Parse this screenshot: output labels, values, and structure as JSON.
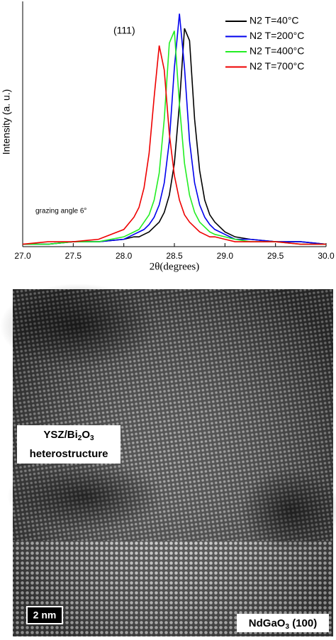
{
  "chart_data": {
    "type": "line",
    "ylabel": "Intensity (a. u.)",
    "xlabel": "2θ(degrees)",
    "annotations": [
      "(111)",
      "grazing angle 6°"
    ],
    "legend": "upper right",
    "xlim": [
      27,
      30
    ],
    "xticks": [
      {
        "value": 27,
        "label": "27.0"
      },
      {
        "value": 27.5,
        "label": "27.5"
      },
      {
        "value": 28,
        "label": "28.0"
      },
      {
        "value": 28.5,
        "label": "28.5"
      },
      {
        "value": 29,
        "label": "29.0"
      },
      {
        "value": 29.5,
        "label": "29.5"
      },
      {
        "value": 30,
        "label": "30.0"
      }
    ],
    "ylim": [
      0,
      1
    ],
    "x": [
      27.0,
      27.25,
      27.5,
      27.75,
      28.0,
      28.1,
      28.15,
      28.2,
      28.25,
      28.3,
      28.35,
      28.4,
      28.45,
      28.5,
      28.55,
      28.6,
      28.65,
      28.7,
      28.75,
      28.8,
      28.85,
      28.9,
      29.0,
      29.1,
      29.25,
      29.5,
      29.75,
      30.0
    ],
    "series": [
      {
        "name": "N2 T=40°C",
        "color": "#000000",
        "values": [
          0.01,
          0.01,
          0.02,
          0.02,
          0.03,
          0.04,
          0.04,
          0.05,
          0.06,
          0.08,
          0.1,
          0.14,
          0.21,
          0.34,
          0.58,
          0.89,
          0.84,
          0.52,
          0.31,
          0.19,
          0.13,
          0.1,
          0.06,
          0.04,
          0.03,
          0.02,
          0.02,
          0.01
        ]
      },
      {
        "name": "N2 T=200°C",
        "color": "#0000ee",
        "values": [
          0.01,
          0.01,
          0.02,
          0.02,
          0.03,
          0.05,
          0.06,
          0.07,
          0.09,
          0.12,
          0.17,
          0.26,
          0.43,
          0.73,
          0.95,
          0.73,
          0.43,
          0.26,
          0.17,
          0.12,
          0.09,
          0.07,
          0.05,
          0.03,
          0.03,
          0.02,
          0.02,
          0.01
        ]
      },
      {
        "name": "N2 T=400°C",
        "color": "#22ee22",
        "values": [
          0.01,
          0.01,
          0.02,
          0.02,
          0.04,
          0.06,
          0.07,
          0.1,
          0.13,
          0.19,
          0.3,
          0.52,
          0.83,
          0.88,
          0.58,
          0.34,
          0.21,
          0.14,
          0.1,
          0.08,
          0.06,
          0.05,
          0.04,
          0.03,
          0.02,
          0.02,
          0.01,
          0.01
        ]
      },
      {
        "name": "N2 T=700°C",
        "color": "#ee0000",
        "values": [
          0.01,
          0.02,
          0.02,
          0.03,
          0.07,
          0.12,
          0.16,
          0.24,
          0.38,
          0.61,
          0.82,
          0.72,
          0.46,
          0.29,
          0.19,
          0.13,
          0.1,
          0.08,
          0.06,
          0.05,
          0.04,
          0.04,
          0.03,
          0.02,
          0.02,
          0.02,
          0.01,
          0.01
        ]
      }
    ]
  },
  "tem": {
    "material": [
      "YSZ/Bi",
      "2",
      "O",
      "3"
    ],
    "material_line2": "heterostructure",
    "scale": "2 nm",
    "substrate": [
      "NdGaO",
      "3",
      " (100)"
    ]
  }
}
